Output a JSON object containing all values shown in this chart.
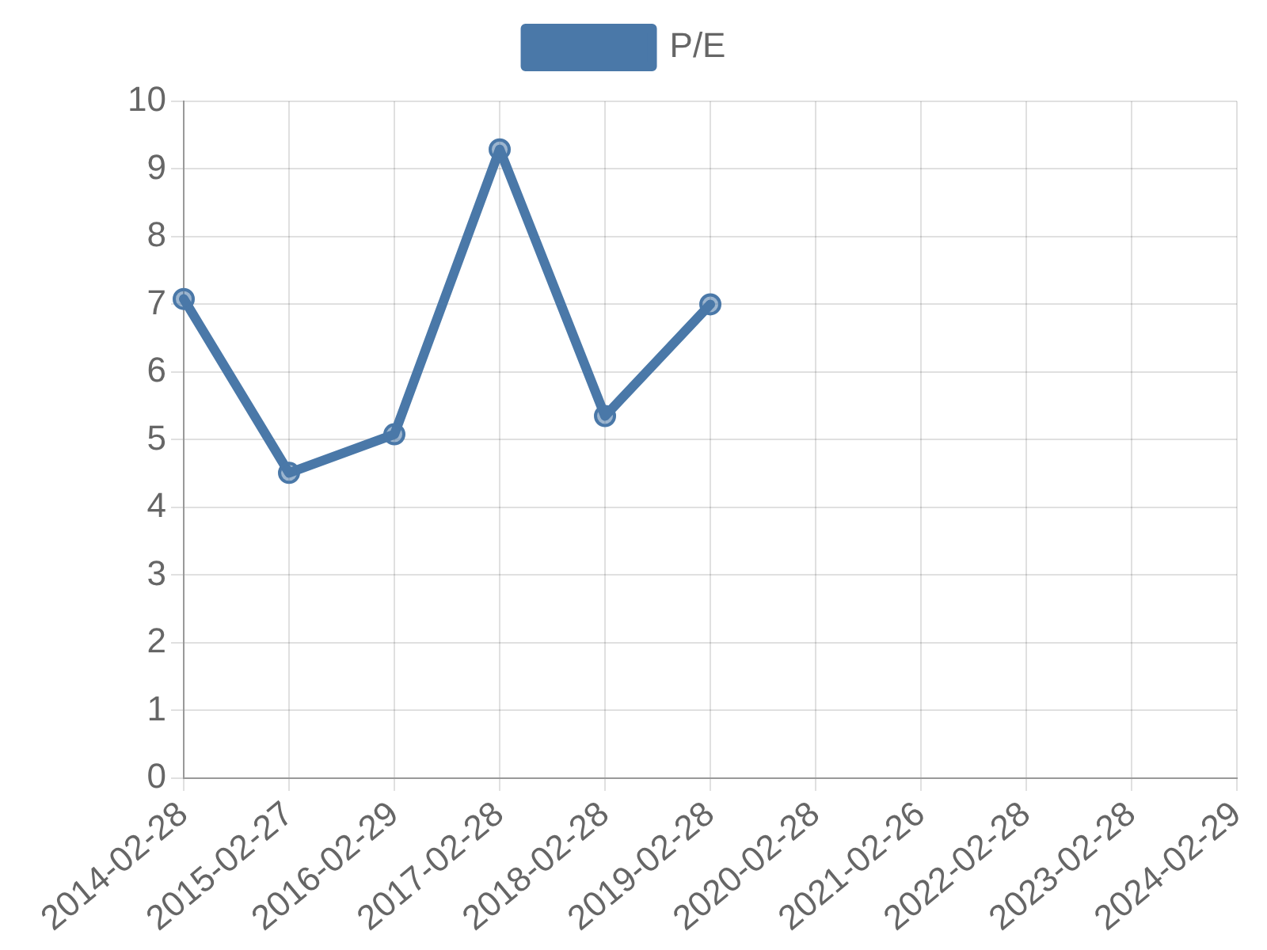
{
  "chart_data": {
    "type": "line",
    "categories": [
      "2014-02-28",
      "2015-02-27",
      "2016-02-29",
      "2017-02-28",
      "2018-02-28",
      "2019-02-28",
      "2020-02-28",
      "2021-02-26",
      "2022-02-28",
      "2023-02-28",
      "2024-02-29"
    ],
    "series": [
      {
        "name": "P/E",
        "color": "#4a78a8",
        "values": [
          7.08,
          4.51,
          5.08,
          9.29,
          5.35,
          7.0,
          null,
          null,
          null,
          null,
          null
        ]
      }
    ],
    "ylim": [
      0,
      10
    ],
    "yticks": [
      0,
      1,
      2,
      3,
      4,
      5,
      6,
      7,
      8,
      9,
      10
    ],
    "grid": true,
    "legend": "top",
    "marker": "circle",
    "line_style": "solid"
  }
}
